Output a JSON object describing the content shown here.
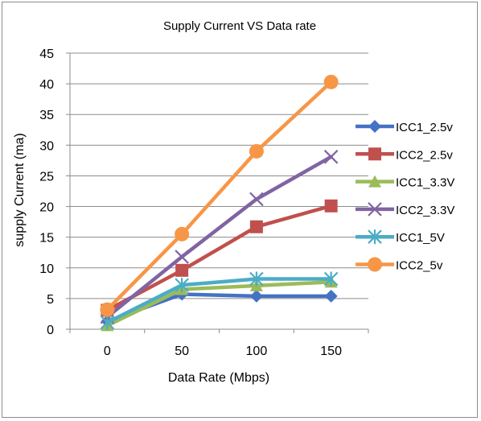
{
  "chart_data": {
    "type": "line",
    "title": "Supply Current  VS  Data rate",
    "xlabel": "Data Rate (Mbps)",
    "ylabel": "supply Current (ma)",
    "categories": [
      "0",
      "50",
      "100",
      "150"
    ],
    "ylim": [
      0,
      45
    ],
    "yticks": [
      0,
      5,
      10,
      15,
      20,
      25,
      30,
      35,
      40,
      45
    ],
    "grid": true,
    "legend_position": "right",
    "series": [
      {
        "name": "ICC1_2.5v",
        "values": [
          1.3,
          5.7,
          5.4,
          5.4
        ],
        "color": "#4472C4",
        "marker": "diamond"
      },
      {
        "name": "ICC2_2.5v",
        "values": [
          3.1,
          9.6,
          16.7,
          20.1
        ],
        "color": "#C0504D",
        "marker": "square"
      },
      {
        "name": "ICC1_3.3V",
        "values": [
          0.6,
          6.5,
          7.1,
          7.7
        ],
        "color": "#9BBB59",
        "marker": "triangle"
      },
      {
        "name": "ICC2_3.3V",
        "values": [
          2.0,
          11.8,
          21.2,
          28.1
        ],
        "color": "#8064A2",
        "marker": "x"
      },
      {
        "name": "ICC1_5V",
        "values": [
          1.1,
          7.2,
          8.2,
          8.2
        ],
        "color": "#4BACC6",
        "marker": "star"
      },
      {
        "name": "ICC2_5v",
        "values": [
          3.2,
          15.5,
          29.0,
          40.3
        ],
        "color": "#F79646",
        "marker": "circle"
      }
    ]
  }
}
